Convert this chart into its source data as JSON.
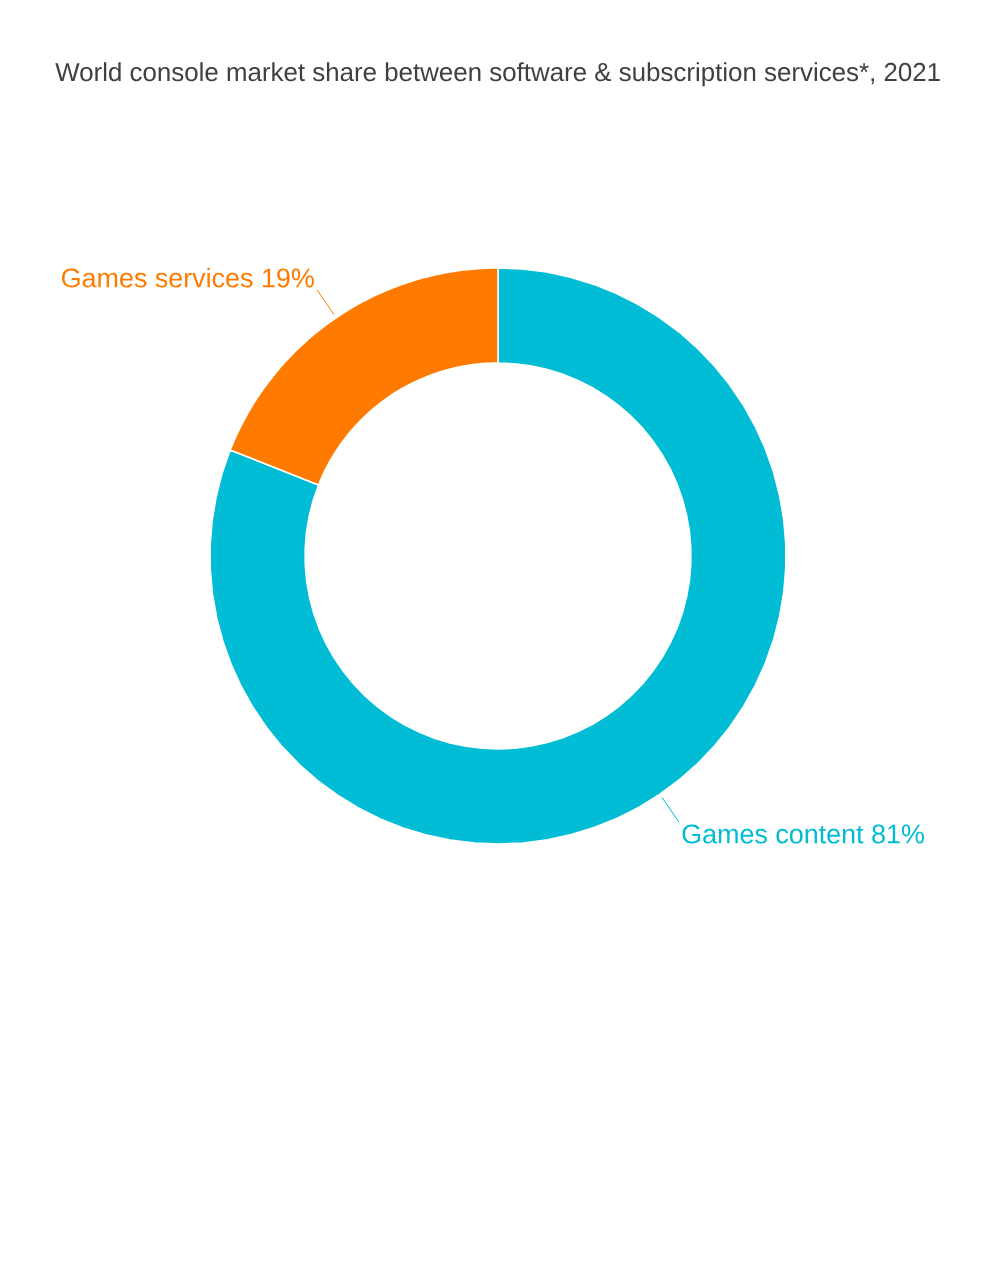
{
  "chart_data": {
    "type": "donut",
    "title": "World console market share between software & subscription services*, 2021",
    "categories": [
      "Games content",
      "Games services"
    ],
    "values": [
      81,
      19
    ],
    "value_labels": [
      "81%",
      "19%"
    ],
    "colors": [
      "#00bcd4",
      "#ff7b00"
    ]
  }
}
